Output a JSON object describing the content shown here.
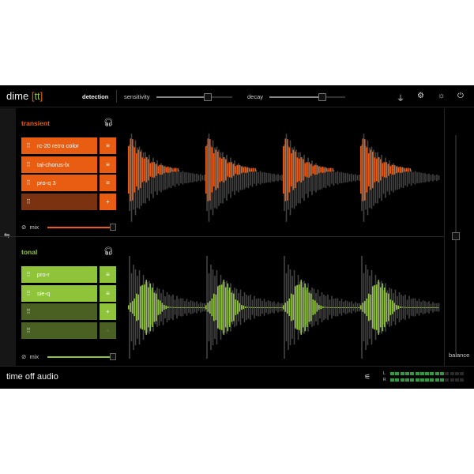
{
  "header": {
    "logo": "dime",
    "logo_bracket_open": "[",
    "logo_tt": "tt",
    "logo_bracket_close": "]",
    "detection": "detection",
    "sensitivity": "sensitivity",
    "sensitivity_value": 0.68,
    "decay": "decay",
    "decay_value": 0.7,
    "icons": [
      "plug-icon",
      "settings-icon",
      "brightness-icon",
      "power-icon"
    ]
  },
  "transient": {
    "title": "transient",
    "color": "#e85d12",
    "empty_color": "#7a3210",
    "plugins": [
      {
        "name": "rc-20 retro color"
      },
      {
        "name": "tal-chorus-lx"
      },
      {
        "name": "pro-q 3"
      }
    ],
    "add": "+",
    "menu": "≡",
    "mix_label": "mix",
    "mix_value": 0.97
  },
  "tonal": {
    "title": "tonal",
    "color": "#8fc43a",
    "empty_color": "#4a6022",
    "plugins": [
      {
        "name": "pro-r"
      },
      {
        "name": "sie-q"
      }
    ],
    "add": "+",
    "menu": "≡",
    "mix_label": "mix",
    "mix_value": 0.97
  },
  "balance": {
    "label": "balance",
    "value": 0.5
  },
  "footer": {
    "brand": "time off audio",
    "meter_l": "L",
    "meter_r": "R",
    "meter_level_l": 0.67,
    "meter_level_r": 0.67,
    "meter_color": "#2e9d3e"
  }
}
